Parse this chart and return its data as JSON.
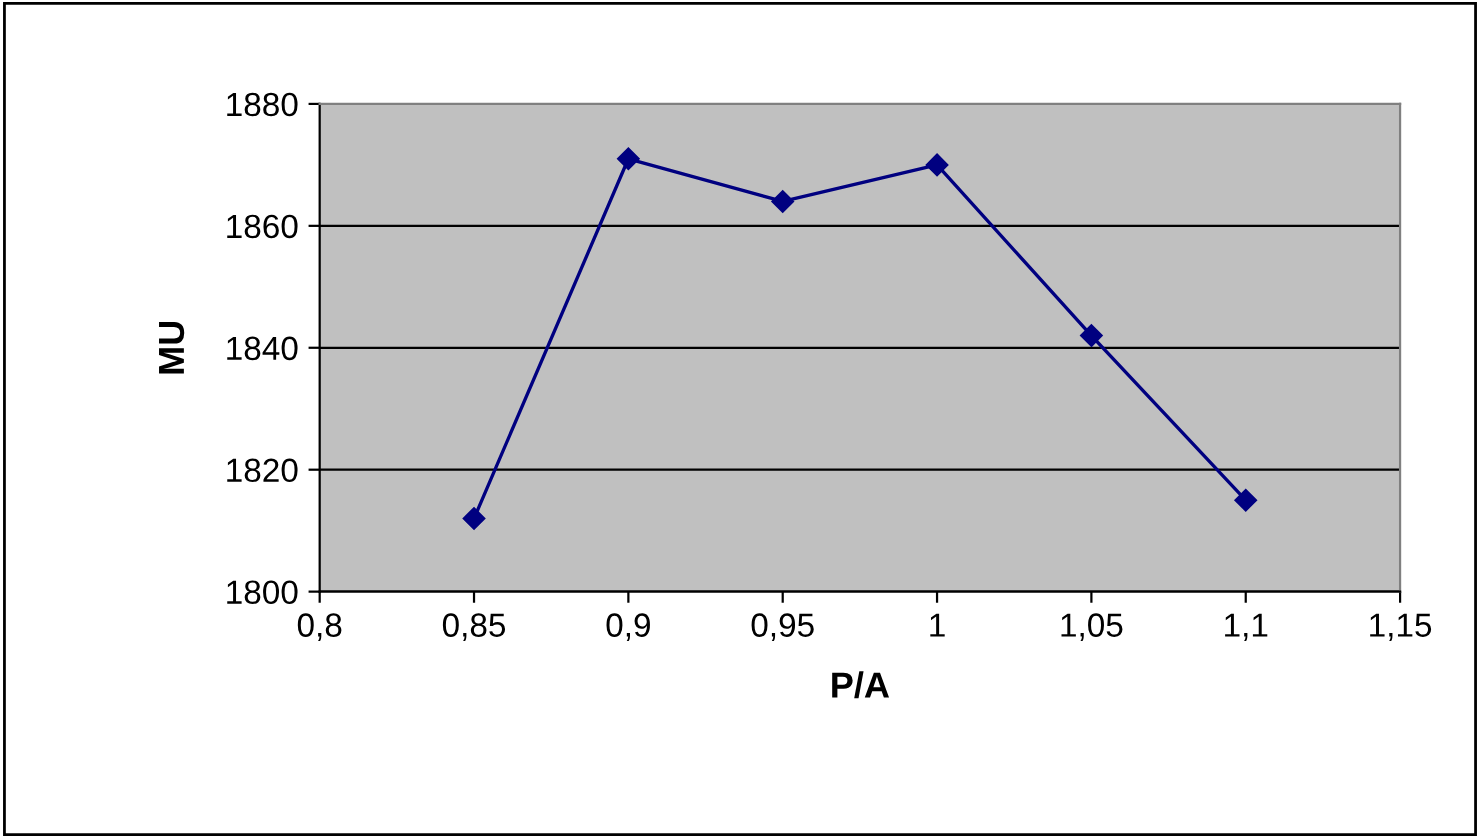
{
  "chart_data": {
    "type": "line",
    "xlabel": "P/A",
    "ylabel": "MU",
    "x": [
      0.85,
      0.9,
      0.95,
      1.0,
      1.05,
      1.1
    ],
    "series": [
      {
        "color": "#000080",
        "values": [
          1812,
          1871,
          1864,
          1870,
          1842,
          1815
        ]
      }
    ],
    "xlim": [
      0.8,
      1.15
    ],
    "ylim": [
      1800,
      1880
    ],
    "xticks": [
      {
        "value": 0.8,
        "label": "0,8"
      },
      {
        "value": 0.85,
        "label": "0,85"
      },
      {
        "value": 0.9,
        "label": "0,9"
      },
      {
        "value": 0.95,
        "label": "0,95"
      },
      {
        "value": 1.0,
        "label": "1"
      },
      {
        "value": 1.05,
        "label": "1,05"
      },
      {
        "value": 1.1,
        "label": "1,1"
      },
      {
        "value": 1.15,
        "label": "1,15"
      }
    ],
    "yticks": [
      1800,
      1820,
      1840,
      1860,
      1880
    ],
    "grid": "y",
    "marker": "diamond",
    "line_style": "solid"
  }
}
